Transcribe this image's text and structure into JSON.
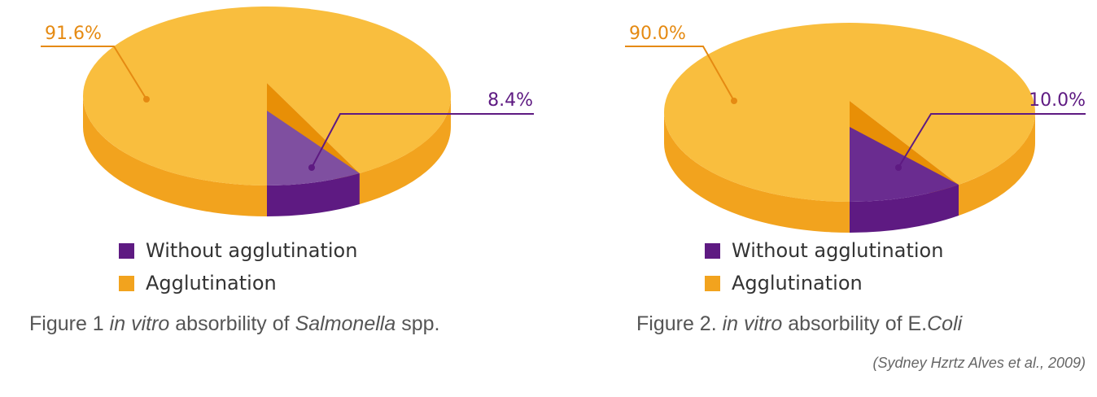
{
  "colors": {
    "agglutination_top": "#F9BE3E",
    "agglutination_side": "#F2A31E",
    "without_top_1": "#7F4FA0",
    "without_top_2": "#6A2C90",
    "without_side": "#5E1A82",
    "cut_face": "#E88F06",
    "agglutination_label": "#E58A12",
    "without_label": "#5E1A82"
  },
  "chart_data": [
    {
      "type": "pie",
      "categories": [
        "Without agglutination",
        "Agglutination"
      ],
      "values": [
        8.4,
        91.6
      ],
      "value_labels": [
        "8.4%",
        "91.6%"
      ],
      "legend": [
        "Without agglutination",
        "Agglutination"
      ],
      "legend_position": "bottom",
      "style": "3d"
    },
    {
      "type": "pie",
      "categories": [
        "Without agglutination",
        "Agglutination"
      ],
      "values": [
        10.0,
        90.0
      ],
      "value_labels": [
        "10.0%",
        "90.0%"
      ],
      "legend": [
        "Without agglutination",
        "Agglutination"
      ],
      "legend_position": "bottom",
      "style": "3d"
    }
  ],
  "captions": {
    "fig1": {
      "prefix": "Figure 1 ",
      "italic1": "in vitro",
      "middle": " absorbility of ",
      "italic2": "Salmonella",
      "suffix": " spp."
    },
    "fig2": {
      "prefix": "Figure 2. ",
      "italic1": "in vitro",
      "middle": " absorbility of E.",
      "italic2": "Coli",
      "suffix": ""
    }
  },
  "source": "(Sydney Hzrtz Alves et al., 2009)"
}
